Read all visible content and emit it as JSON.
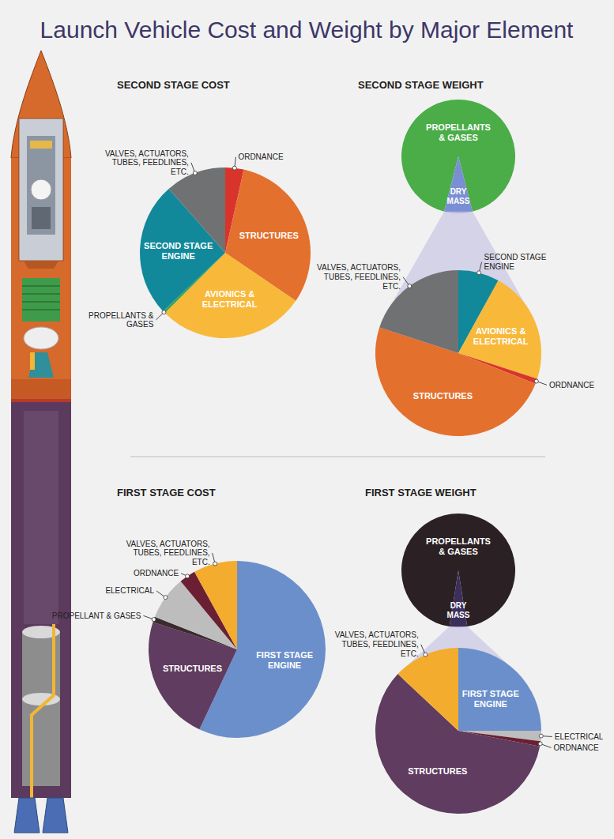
{
  "title": "Launch Vehicle Cost and Weight by Major Element",
  "chart_data": [
    {
      "type": "pie",
      "title": "SECOND STAGE COST",
      "categories": [
        "ORDNANCE",
        "STRUCTURES",
        "AVIONICS & ELECTRICAL",
        "PROPELLANTS & GASES",
        "SECOND STAGE ENGINE",
        "VALVES, ACTUATORS, TUBES, FEEDLINES, ETC."
      ],
      "values": [
        3.5,
        31,
        28,
        0.5,
        25.5,
        11.5
      ],
      "colors": [
        "#d9342b",
        "#e4702e",
        "#f8b83a",
        "#3fa34d",
        "#12899a",
        "#707173"
      ]
    },
    {
      "type": "pie",
      "title": "SECOND STAGE WEIGHT",
      "categories": [
        "PROPELLANTS & GASES",
        "DRY MASS"
      ],
      "values": [
        92,
        8
      ],
      "colors": [
        "#4bad48",
        "#7a8fd3"
      ],
      "breakdown": {
        "categories": [
          "SECOND STAGE ENGINE",
          "AVIONICS & ELECTRICAL",
          "ORDNANCE",
          "STRUCTURES",
          "VALVES, ACTUATORS, TUBES, FEEDLINES, ETC."
        ],
        "values": [
          8,
          22,
          1,
          49,
          20
        ],
        "colors": [
          "#12899a",
          "#f8b83a",
          "#d9342b",
          "#e4702e",
          "#707173"
        ]
      }
    },
    {
      "type": "pie",
      "title": "FIRST STAGE COST",
      "categories": [
        "FIRST STAGE ENGINE",
        "STRUCTURES",
        "PROPELLANT & GASES",
        "ELECTRICAL",
        "ORDNANCE",
        "VALVES, ACTUATORS, TUBES, FEEDLINES, ETC."
      ],
      "values": [
        57,
        23,
        1,
        8,
        3,
        8
      ],
      "colors": [
        "#6b8fcb",
        "#5f3c60",
        "#3a2b2e",
        "#bdbdbd",
        "#6a1f33",
        "#f3ac2d"
      ]
    },
    {
      "type": "pie",
      "title": "FIRST STAGE WEIGHT",
      "categories": [
        "PROPELLANTS & GASES",
        "DRY MASS"
      ],
      "values": [
        95,
        5
      ],
      "colors": [
        "#2b2124",
        "#3c2f5c"
      ],
      "breakdown": {
        "categories": [
          "FIRST STAGE ENGINE",
          "ELECTRICAL",
          "ORDNANCE",
          "STRUCTURES",
          "VALVES, ACTUATORS, TUBES, FEEDLINES, ETC."
        ],
        "values": [
          25,
          2,
          1,
          59,
          13
        ],
        "colors": [
          "#6b8fcb",
          "#bdbdbd",
          "#6a1f33",
          "#5f3c60",
          "#f3ac2d"
        ]
      }
    }
  ]
}
